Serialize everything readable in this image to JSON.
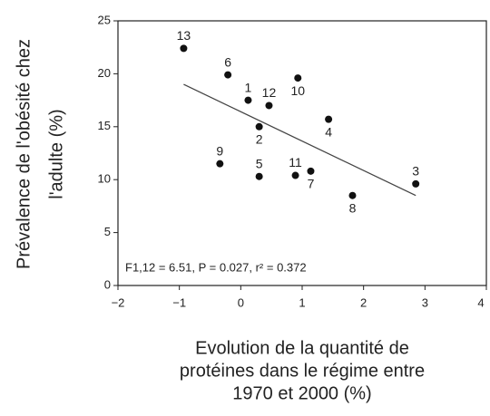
{
  "chart_data": {
    "type": "scatter",
    "y_label": [
      "Prévalence de l'obésité chez",
      "l'adulte (%)"
    ],
    "x_label": [
      "Evolution de la quantité de",
      "protéines dans le régime entre",
      "1970 et 2000 (%)"
    ],
    "annotation": "F1,12 = 6.51, P = 0.027, r² = 0.372",
    "labels": [
      "13",
      "6",
      "1",
      "12",
      "10",
      "2",
      "4",
      "9",
      "5",
      "11",
      "7",
      "8",
      "3"
    ],
    "x": [
      -0.93,
      -0.21,
      0.12,
      0.46,
      0.93,
      0.3,
      1.43,
      -0.34,
      0.3,
      0.89,
      1.14,
      1.82,
      2.85
    ],
    "values": [
      22.4,
      19.9,
      17.5,
      17.0,
      19.6,
      15.0,
      15.7,
      11.5,
      10.3,
      10.4,
      10.8,
      8.5,
      9.6
    ],
    "color": "#111111",
    "regression": {
      "x": [
        -0.93,
        2.85
      ],
      "y": [
        19.0,
        8.5
      ]
    },
    "xlim": [
      -2,
      4
    ],
    "xticks": [
      {
        "value": -2,
        "label": "−2"
      },
      {
        "value": -1,
        "label": "−1"
      },
      0,
      1,
      2,
      3,
      4
    ],
    "ylim": [
      0,
      25
    ],
    "yticks": [
      0,
      5,
      10,
      15,
      20,
      25
    ]
  }
}
